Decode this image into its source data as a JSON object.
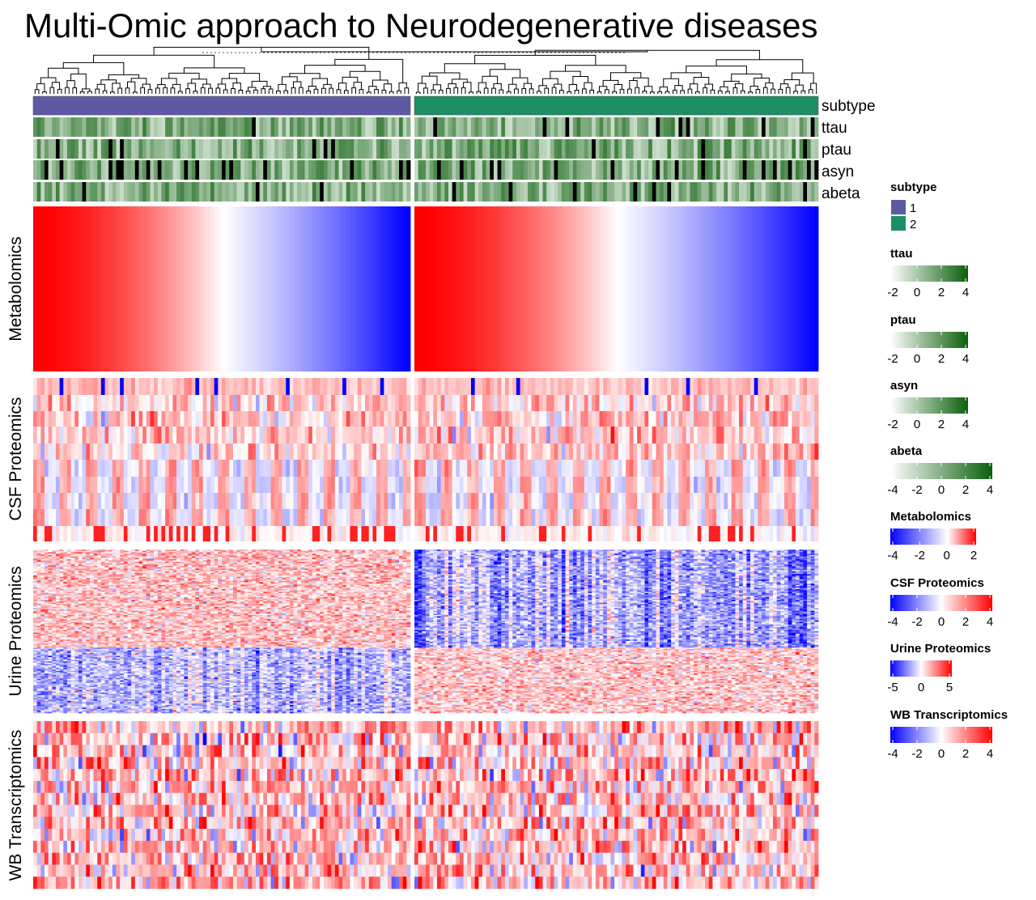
{
  "title": "Multi-Omic approach to Neurodegenerative diseases",
  "colors": {
    "subtype_1": "#5E59A4",
    "subtype_2": "#1B8F64",
    "green_low": "#ffffff",
    "green_high": "#0A5E0A",
    "na": "#000000",
    "low": "#0000ff",
    "mid": "#ffffff",
    "high": "#ff0000"
  },
  "chart_data": {
    "type": "heatmap",
    "title": "Multi-Omic approach to Neurodegenerative diseases",
    "columns_per_group": [
      100,
      107
    ],
    "annotation_rows": [
      "subtype",
      "ttau",
      "ptau",
      "asyn",
      "abeta"
    ],
    "subtype_levels": [
      "1",
      "2"
    ],
    "row_blocks": [
      {
        "name": "Metabolomics",
        "rows": 1
      },
      {
        "name": "CSF Proteomics",
        "rows": 9
      },
      {
        "name": "Urine Proteomics",
        "rows": 120
      },
      {
        "name": "WB Transcriptomics",
        "rows": 14
      }
    ],
    "legends": [
      {
        "title": "subtype",
        "type": "discrete",
        "levels": [
          "1",
          "2"
        ]
      },
      {
        "title": "ttau",
        "type": "continuous",
        "range": [
          -2,
          4
        ],
        "ticks": [
          "-2",
          "0",
          "2",
          "4"
        ]
      },
      {
        "title": "ptau",
        "type": "continuous",
        "range": [
          -2,
          4
        ],
        "ticks": [
          "-2",
          "0",
          "2",
          "4"
        ]
      },
      {
        "title": "asyn",
        "type": "continuous",
        "range": [
          -2,
          4
        ],
        "ticks": [
          "-2",
          "0",
          "2",
          "4"
        ]
      },
      {
        "title": "abeta",
        "type": "continuous",
        "range": [
          -4,
          4
        ],
        "ticks": [
          "-4",
          "-2",
          "0",
          "2",
          "4"
        ]
      },
      {
        "title": "Metabolomics",
        "type": "continuous",
        "range": [
          -4,
          2
        ],
        "ticks": [
          "-4",
          "-2",
          "0",
          "2"
        ]
      },
      {
        "title": "CSF Proteomics",
        "type": "continuous",
        "range": [
          -4,
          4
        ],
        "ticks": [
          "-4",
          "-2",
          "0",
          "2",
          "4"
        ]
      },
      {
        "title": "Urine Proteomics",
        "type": "continuous",
        "range": [
          -5,
          5
        ],
        "ticks": [
          "-5",
          "0",
          "5"
        ]
      },
      {
        "title": "WB Transcriptomics",
        "type": "continuous",
        "range": [
          -4,
          4
        ],
        "ticks": [
          "-4",
          "-2",
          "0",
          "2",
          "4"
        ]
      }
    ]
  }
}
